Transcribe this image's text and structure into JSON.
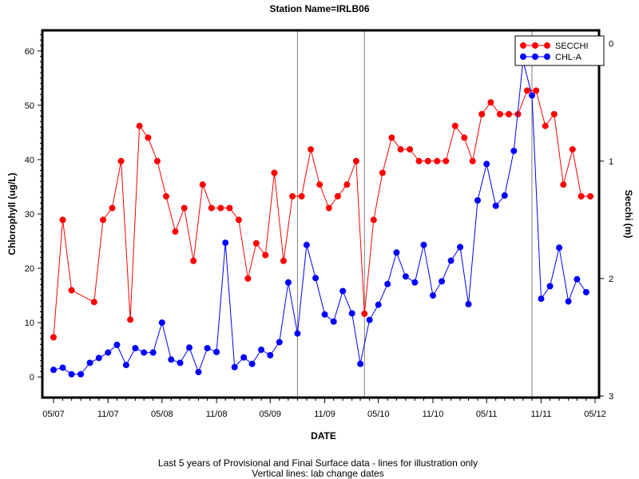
{
  "chart_data": {
    "type": "line",
    "title": "Station Name=IRLB06",
    "xlabel": "DATE",
    "ylabel_left": "Chlorophyll (ug/L)",
    "ylabel_right": "Secchi (m)",
    "footnote_line1": "Last 5 years of Provisional and Final Surface data - lines for illustration only",
    "footnote_line2": "Vertical lines: lab change dates",
    "x_range": [
      "2007-05-01",
      "2012-05-01"
    ],
    "x_ticks": [
      {
        "date": "2007-05-01",
        "label": "05/07"
      },
      {
        "date": "2007-11-01",
        "label": "11/07"
      },
      {
        "date": "2008-05-01",
        "label": "05/08"
      },
      {
        "date": "2008-11-01",
        "label": "11/08"
      },
      {
        "date": "2009-05-01",
        "label": "05/09"
      },
      {
        "date": "2009-11-01",
        "label": "11/09"
      },
      {
        "date": "2010-05-01",
        "label": "05/10"
      },
      {
        "date": "2010-11-01",
        "label": "11/10"
      },
      {
        "date": "2011-05-01",
        "label": "05/11"
      },
      {
        "date": "2011-11-01",
        "label": "11/11"
      },
      {
        "date": "2012-05-01",
        "label": "05/12"
      }
    ],
    "y_left_range": [
      -3.5,
      63.5
    ],
    "y_left_ticks": [
      0,
      10,
      20,
      30,
      40,
      50,
      60
    ],
    "y_right_range": [
      3.0,
      -0.1
    ],
    "y_right_ticks": [
      0,
      1,
      2,
      3
    ],
    "vertical_lines": [
      "2009-08-01",
      "2010-03-15",
      "2011-10-01"
    ],
    "legend_position": "top-right",
    "series": [
      {
        "name": "SECCHI",
        "axis": "right",
        "color": "#ff0000",
        "points": [
          [
            "2007-05-01",
            2.5
          ],
          [
            "2007-06-01",
            1.5
          ],
          [
            "2007-07-01",
            2.1
          ],
          [
            "2007-09-15",
            2.2
          ],
          [
            "2007-10-15",
            1.5
          ],
          [
            "2007-11-15",
            1.4
          ],
          [
            "2007-12-15",
            1.0
          ],
          [
            "2008-01-15",
            2.35
          ],
          [
            "2008-02-15",
            0.7
          ],
          [
            "2008-03-15",
            0.8
          ],
          [
            "2008-04-15",
            1.0
          ],
          [
            "2008-05-15",
            1.3
          ],
          [
            "2008-06-15",
            1.6
          ],
          [
            "2008-07-15",
            1.4
          ],
          [
            "2008-08-15",
            1.85
          ],
          [
            "2008-09-15",
            1.2
          ],
          [
            "2008-10-15",
            1.4
          ],
          [
            "2008-11-15",
            1.4
          ],
          [
            "2008-12-15",
            1.4
          ],
          [
            "2009-01-15",
            1.5
          ],
          [
            "2009-02-15",
            2.0
          ],
          [
            "2009-03-15",
            1.7
          ],
          [
            "2009-04-15",
            1.8
          ],
          [
            "2009-05-15",
            1.1
          ],
          [
            "2009-06-15",
            1.85
          ],
          [
            "2009-07-15",
            1.3
          ],
          [
            "2009-08-15",
            1.3
          ],
          [
            "2009-09-15",
            0.9
          ],
          [
            "2009-10-15",
            1.2
          ],
          [
            "2009-11-15",
            1.4
          ],
          [
            "2009-12-15",
            1.3
          ],
          [
            "2010-01-15",
            1.2
          ],
          [
            "2010-02-15",
            1.0
          ],
          [
            "2010-03-15",
            2.3
          ],
          [
            "2010-04-15",
            1.5
          ],
          [
            "2010-05-15",
            1.1
          ],
          [
            "2010-06-15",
            0.8
          ],
          [
            "2010-07-15",
            0.9
          ],
          [
            "2010-08-15",
            0.9
          ],
          [
            "2010-09-15",
            1.0
          ],
          [
            "2010-10-15",
            1.0
          ],
          [
            "2010-11-15",
            1.0
          ],
          [
            "2010-12-15",
            1.0
          ],
          [
            "2011-01-15",
            0.7
          ],
          [
            "2011-02-15",
            0.8
          ],
          [
            "2011-03-15",
            1.0
          ],
          [
            "2011-04-15",
            0.6
          ],
          [
            "2011-05-15",
            0.5
          ],
          [
            "2011-06-15",
            0.6
          ],
          [
            "2011-07-15",
            0.6
          ],
          [
            "2011-08-15",
            0.6
          ],
          [
            "2011-09-15",
            0.4
          ],
          [
            "2011-10-15",
            0.4
          ],
          [
            "2011-11-15",
            0.7
          ],
          [
            "2011-12-15",
            0.6
          ],
          [
            "2012-01-15",
            1.2
          ],
          [
            "2012-02-15",
            0.9
          ],
          [
            "2012-03-15",
            1.3
          ],
          [
            "2012-04-15",
            1.3
          ]
        ]
      },
      {
        "name": "CHL-A",
        "axis": "left",
        "color": "#0000ff",
        "points": [
          [
            "2007-05-01",
            1.3
          ],
          [
            "2007-06-01",
            1.7
          ],
          [
            "2007-07-01",
            0.5
          ],
          [
            "2007-08-01",
            0.5
          ],
          [
            "2007-09-01",
            2.6
          ],
          [
            "2007-10-01",
            3.5
          ],
          [
            "2007-11-01",
            4.5
          ],
          [
            "2007-12-01",
            5.9
          ],
          [
            "2008-01-01",
            2.2
          ],
          [
            "2008-02-01",
            5.3
          ],
          [
            "2008-03-01",
            4.5
          ],
          [
            "2008-04-01",
            4.5
          ],
          [
            "2008-05-01",
            10.0
          ],
          [
            "2008-06-01",
            3.2
          ],
          [
            "2008-07-01",
            2.6
          ],
          [
            "2008-08-01",
            5.4
          ],
          [
            "2008-09-01",
            0.9
          ],
          [
            "2008-10-01",
            5.3
          ],
          [
            "2008-11-01",
            4.6
          ],
          [
            "2008-12-01",
            24.7
          ],
          [
            "2009-01-01",
            1.8
          ],
          [
            "2009-02-01",
            3.6
          ],
          [
            "2009-03-01",
            2.4
          ],
          [
            "2009-04-01",
            5.0
          ],
          [
            "2009-05-01",
            4.0
          ],
          [
            "2009-06-01",
            6.4
          ],
          [
            "2009-07-01",
            17.4
          ],
          [
            "2009-08-01",
            8.0
          ],
          [
            "2009-09-01",
            24.3
          ],
          [
            "2009-10-01",
            18.2
          ],
          [
            "2009-11-01",
            11.5
          ],
          [
            "2009-12-01",
            10.2
          ],
          [
            "2010-01-01",
            15.8
          ],
          [
            "2010-02-01",
            11.7
          ],
          [
            "2010-03-01",
            2.4
          ],
          [
            "2010-04-01",
            10.5
          ],
          [
            "2010-05-01",
            13.3
          ],
          [
            "2010-06-01",
            17.1
          ],
          [
            "2010-07-01",
            22.9
          ],
          [
            "2010-08-01",
            18.5
          ],
          [
            "2010-09-01",
            17.4
          ],
          [
            "2010-10-01",
            24.3
          ],
          [
            "2010-11-01",
            15.0
          ],
          [
            "2010-12-01",
            17.6
          ],
          [
            "2011-01-01",
            21.4
          ],
          [
            "2011-02-01",
            23.9
          ],
          [
            "2011-03-01",
            13.4
          ],
          [
            "2011-04-01",
            32.5
          ],
          [
            "2011-05-01",
            39.2
          ],
          [
            "2011-06-01",
            31.5
          ],
          [
            "2011-07-01",
            33.4
          ],
          [
            "2011-08-01",
            41.6
          ],
          [
            "2011-09-01",
            58.2
          ],
          [
            "2011-10-01",
            51.8
          ],
          [
            "2011-11-01",
            14.4
          ],
          [
            "2011-12-01",
            16.7
          ],
          [
            "2012-01-01",
            23.8
          ],
          [
            "2012-02-01",
            13.9
          ],
          [
            "2012-03-01",
            18.0
          ],
          [
            "2012-04-01",
            15.6
          ]
        ]
      }
    ]
  }
}
